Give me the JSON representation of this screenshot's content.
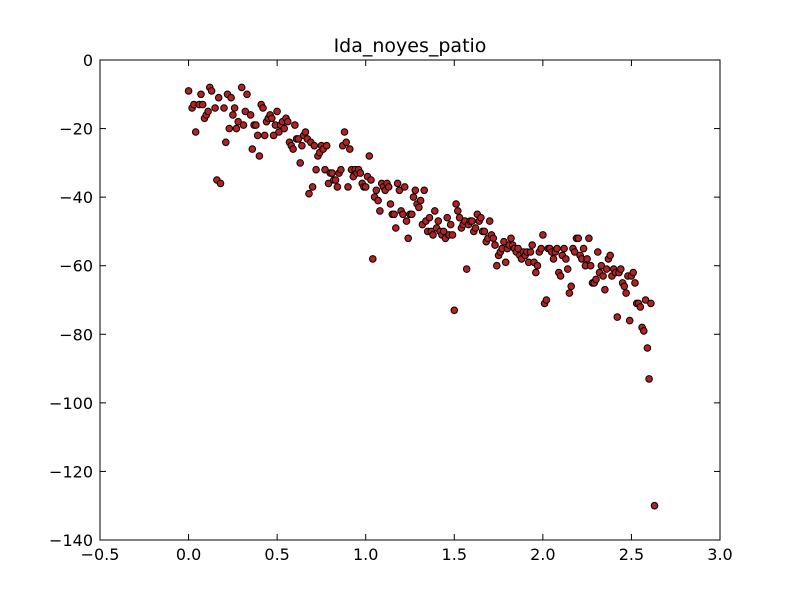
{
  "chart_data": {
    "type": "scatter",
    "title": "Ida_noyes_patio",
    "xlabel": "",
    "ylabel": "",
    "xlim": [
      -0.5,
      3.0
    ],
    "ylim": [
      -140,
      0
    ],
    "x_ticks": [
      -0.5,
      0.0,
      0.5,
      1.0,
      1.5,
      2.0,
      2.5,
      3.0
    ],
    "x_tick_labels": [
      "−0.5",
      "0.0",
      "0.5",
      "1.0",
      "1.5",
      "2.0",
      "2.5",
      "3.0"
    ],
    "y_ticks": [
      0,
      -20,
      -40,
      -60,
      -80,
      -100,
      -120,
      -140
    ],
    "y_tick_labels": [
      "0",
      "−20",
      "−40",
      "−60",
      "−80",
      "−100",
      "−120",
      "−140"
    ],
    "grid": false,
    "marker_color": "#b22222",
    "marker_edge": "#000000",
    "series": [
      {
        "points": [
          [
            0.0,
            -9
          ],
          [
            0.02,
            -14
          ],
          [
            0.03,
            -13
          ],
          [
            0.04,
            -21
          ],
          [
            0.06,
            -13
          ],
          [
            0.07,
            -10
          ],
          [
            0.08,
            -13
          ],
          [
            0.09,
            -17
          ],
          [
            0.1,
            -16
          ],
          [
            0.11,
            -15
          ],
          [
            0.12,
            -8
          ],
          [
            0.13,
            -9
          ],
          [
            0.15,
            -14
          ],
          [
            0.16,
            -35
          ],
          [
            0.17,
            -11
          ],
          [
            0.18,
            -36
          ],
          [
            0.2,
            -14
          ],
          [
            0.21,
            -24
          ],
          [
            0.22,
            -10
          ],
          [
            0.23,
            -20
          ],
          [
            0.24,
            -11
          ],
          [
            0.25,
            -16
          ],
          [
            0.26,
            -14
          ],
          [
            0.27,
            -20
          ],
          [
            0.28,
            -18
          ],
          [
            0.3,
            -8
          ],
          [
            0.31,
            -19
          ],
          [
            0.32,
            -15
          ],
          [
            0.33,
            -10
          ],
          [
            0.35,
            -16
          ],
          [
            0.36,
            -26
          ],
          [
            0.37,
            -19
          ],
          [
            0.38,
            -19
          ],
          [
            0.39,
            -22
          ],
          [
            0.4,
            -28
          ],
          [
            0.41,
            -13
          ],
          [
            0.42,
            -14
          ],
          [
            0.43,
            -22
          ],
          [
            0.44,
            -18
          ],
          [
            0.45,
            -17
          ],
          [
            0.46,
            -16
          ],
          [
            0.47,
            -17
          ],
          [
            0.48,
            -22
          ],
          [
            0.49,
            -19
          ],
          [
            0.5,
            -15
          ],
          [
            0.51,
            -21
          ],
          [
            0.52,
            -19
          ],
          [
            0.53,
            -18
          ],
          [
            0.54,
            -20
          ],
          [
            0.55,
            -17
          ],
          [
            0.56,
            -18
          ],
          [
            0.57,
            -24
          ],
          [
            0.58,
            -25
          ],
          [
            0.59,
            -26
          ],
          [
            0.6,
            -19
          ],
          [
            0.61,
            -23
          ],
          [
            0.62,
            -23
          ],
          [
            0.63,
            -30
          ],
          [
            0.64,
            -25
          ],
          [
            0.65,
            -22
          ],
          [
            0.66,
            -21
          ],
          [
            0.67,
            -23
          ],
          [
            0.68,
            -39
          ],
          [
            0.69,
            -24
          ],
          [
            0.7,
            -37
          ],
          [
            0.71,
            -25
          ],
          [
            0.72,
            -32
          ],
          [
            0.73,
            -28
          ],
          [
            0.74,
            -27
          ],
          [
            0.75,
            -25
          ],
          [
            0.76,
            -26
          ],
          [
            0.77,
            -32
          ],
          [
            0.78,
            -25
          ],
          [
            0.79,
            -36
          ],
          [
            0.8,
            -33
          ],
          [
            0.81,
            -33
          ],
          [
            0.82,
            -35
          ],
          [
            0.83,
            -35
          ],
          [
            0.84,
            -37
          ],
          [
            0.85,
            -33
          ],
          [
            0.86,
            -32
          ],
          [
            0.87,
            -25
          ],
          [
            0.88,
            -21
          ],
          [
            0.89,
            -24
          ],
          [
            0.9,
            -37
          ],
          [
            0.91,
            -26
          ],
          [
            0.92,
            -32
          ],
          [
            0.93,
            -34
          ],
          [
            0.94,
            -32
          ],
          [
            0.95,
            -33
          ],
          [
            0.96,
            -32
          ],
          [
            0.97,
            -33
          ],
          [
            0.98,
            -36
          ],
          [
            0.99,
            -37
          ],
          [
            1.0,
            -37
          ],
          [
            1.01,
            -34
          ],
          [
            1.02,
            -28
          ],
          [
            1.03,
            -35
          ],
          [
            1.04,
            -58
          ],
          [
            1.05,
            -40
          ],
          [
            1.06,
            -38
          ],
          [
            1.07,
            -41
          ],
          [
            1.08,
            -44
          ],
          [
            1.09,
            -36
          ],
          [
            1.1,
            -37
          ],
          [
            1.11,
            -38
          ],
          [
            1.12,
            -36
          ],
          [
            1.13,
            -37
          ],
          [
            1.14,
            -42
          ],
          [
            1.15,
            -45
          ],
          [
            1.16,
            -45
          ],
          [
            1.17,
            -49
          ],
          [
            1.18,
            -36
          ],
          [
            1.19,
            -38
          ],
          [
            1.2,
            -44
          ],
          [
            1.21,
            -45
          ],
          [
            1.22,
            -37
          ],
          [
            1.23,
            -47
          ],
          [
            1.24,
            -52
          ],
          [
            1.25,
            -45
          ],
          [
            1.26,
            -45
          ],
          [
            1.27,
            -40
          ],
          [
            1.28,
            -38
          ],
          [
            1.29,
            -42
          ],
          [
            1.3,
            -43
          ],
          [
            1.31,
            -41
          ],
          [
            1.32,
            -48
          ],
          [
            1.33,
            -38
          ],
          [
            1.34,
            -47
          ],
          [
            1.35,
            -50
          ],
          [
            1.36,
            -46
          ],
          [
            1.37,
            -50
          ],
          [
            1.38,
            -51
          ],
          [
            1.39,
            -44
          ],
          [
            1.4,
            -49
          ],
          [
            1.41,
            -47
          ],
          [
            1.42,
            -50
          ],
          [
            1.43,
            -51
          ],
          [
            1.44,
            -50
          ],
          [
            1.45,
            -52
          ],
          [
            1.46,
            -46
          ],
          [
            1.47,
            -51
          ],
          [
            1.48,
            -48
          ],
          [
            1.49,
            -51
          ],
          [
            1.5,
            -73
          ],
          [
            1.51,
            -42
          ],
          [
            1.52,
            -44
          ],
          [
            1.53,
            -46
          ],
          [
            1.54,
            -49
          ],
          [
            1.55,
            -48
          ],
          [
            1.56,
            -47
          ],
          [
            1.57,
            -61
          ],
          [
            1.58,
            -48
          ],
          [
            1.59,
            -47
          ],
          [
            1.6,
            -47
          ],
          [
            1.61,
            -50
          ],
          [
            1.62,
            -49
          ],
          [
            1.63,
            -45
          ],
          [
            1.64,
            -47
          ],
          [
            1.65,
            -46
          ],
          [
            1.66,
            -50
          ],
          [
            1.67,
            -50
          ],
          [
            1.68,
            -53
          ],
          [
            1.69,
            -52
          ],
          [
            1.7,
            -47
          ],
          [
            1.71,
            -51
          ],
          [
            1.72,
            -52
          ],
          [
            1.73,
            -54
          ],
          [
            1.74,
            -60
          ],
          [
            1.75,
            -57
          ],
          [
            1.76,
            -56
          ],
          [
            1.77,
            -55
          ],
          [
            1.78,
            -53
          ],
          [
            1.79,
            -59
          ],
          [
            1.8,
            -55
          ],
          [
            1.81,
            -54
          ],
          [
            1.82,
            -52
          ],
          [
            1.83,
            -54
          ],
          [
            1.84,
            -55
          ],
          [
            1.85,
            -56
          ],
          [
            1.86,
            -55
          ],
          [
            1.87,
            -57
          ],
          [
            1.88,
            -58
          ],
          [
            1.89,
            -56
          ],
          [
            1.9,
            -57
          ],
          [
            1.91,
            -56
          ],
          [
            1.92,
            -59
          ],
          [
            1.93,
            -56
          ],
          [
            1.94,
            -54
          ],
          [
            1.95,
            -59
          ],
          [
            1.96,
            -62
          ],
          [
            1.97,
            -60
          ],
          [
            1.98,
            -56
          ],
          [
            1.99,
            -55
          ],
          [
            2.0,
            -51
          ],
          [
            2.01,
            -71
          ],
          [
            2.02,
            -70
          ],
          [
            2.03,
            -55
          ],
          [
            2.04,
            -55
          ],
          [
            2.05,
            -56
          ],
          [
            2.06,
            -58
          ],
          [
            2.07,
            -56
          ],
          [
            2.08,
            -55
          ],
          [
            2.09,
            -62
          ],
          [
            2.1,
            -63
          ],
          [
            2.11,
            -57
          ],
          [
            2.12,
            -55
          ],
          [
            2.13,
            -58
          ],
          [
            2.14,
            -61
          ],
          [
            2.15,
            -68
          ],
          [
            2.16,
            -66
          ],
          [
            2.17,
            -55
          ],
          [
            2.18,
            -56
          ],
          [
            2.19,
            -52
          ],
          [
            2.2,
            -52
          ],
          [
            2.21,
            -57
          ],
          [
            2.22,
            -58
          ],
          [
            2.23,
            -55
          ],
          [
            2.24,
            -60
          ],
          [
            2.25,
            -58
          ],
          [
            2.26,
            -52
          ],
          [
            2.27,
            -60
          ],
          [
            2.28,
            -65
          ],
          [
            2.29,
            -65
          ],
          [
            2.3,
            -64
          ],
          [
            2.31,
            -56
          ],
          [
            2.32,
            -62
          ],
          [
            2.33,
            -60
          ],
          [
            2.34,
            -63
          ],
          [
            2.35,
            -67
          ],
          [
            2.36,
            -61
          ],
          [
            2.37,
            -58
          ],
          [
            2.38,
            -57
          ],
          [
            2.39,
            -63
          ],
          [
            2.4,
            -61
          ],
          [
            2.41,
            -62
          ],
          [
            2.42,
            -75
          ],
          [
            2.43,
            -62
          ],
          [
            2.44,
            -61
          ],
          [
            2.45,
            -65
          ],
          [
            2.46,
            -66
          ],
          [
            2.47,
            -68
          ],
          [
            2.48,
            -63
          ],
          [
            2.49,
            -76
          ],
          [
            2.5,
            -63
          ],
          [
            2.51,
            -62
          ],
          [
            2.52,
            -65
          ],
          [
            2.53,
            -71
          ],
          [
            2.54,
            -71
          ],
          [
            2.55,
            -72
          ],
          [
            2.56,
            -78
          ],
          [
            2.57,
            -79
          ],
          [
            2.58,
            -70
          ],
          [
            2.59,
            -84
          ],
          [
            2.6,
            -93
          ],
          [
            2.61,
            -71
          ],
          [
            2.63,
            -130
          ]
        ]
      }
    ]
  }
}
